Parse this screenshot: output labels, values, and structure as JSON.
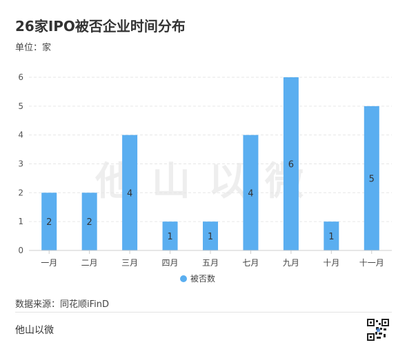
{
  "header": {
    "title": "26家IPO被否企业时间分布",
    "unit": "单位：家"
  },
  "footer": {
    "source": "数据来源：同花顺iFinD",
    "brand": "他山以微"
  },
  "watermark": {
    "text": "他山以微"
  },
  "colors": {
    "bar": "#5aaef0",
    "axis": "#cccccc",
    "grid": "#e6e6e6",
    "label": "#333333"
  },
  "chart_data": {
    "type": "bar",
    "categories": [
      "一月",
      "二月",
      "三月",
      "四月",
      "五月",
      "七月",
      "九月",
      "十月",
      "十一月"
    ],
    "series": [
      {
        "name": "被否数",
        "values": [
          2,
          2,
          4,
          1,
          1,
          4,
          6,
          1,
          5
        ]
      }
    ],
    "ylim": [
      0,
      6
    ],
    "yticks": [
      0,
      1,
      2,
      3,
      4,
      5,
      6
    ],
    "grid": true,
    "legend": "bottom-center",
    "data_labels": true
  }
}
